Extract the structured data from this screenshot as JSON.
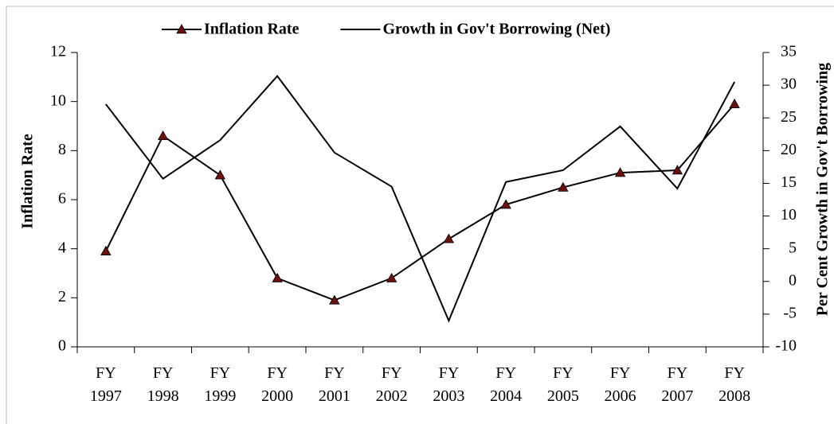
{
  "chart_data": {
    "type": "line",
    "categories": [
      "FY 1997",
      "FY 1998",
      "FY 1999",
      "FY 2000",
      "FY 2001",
      "FY 2002",
      "FY 2003",
      "FY 2004",
      "FY 2005",
      "FY 2006",
      "FY 2007",
      "FY 2008"
    ],
    "series": [
      {
        "name": "Inflation Rate",
        "color": "#000000",
        "marker": "triangle",
        "marker_color": "#6b1010",
        "values": [
          3.9,
          8.6,
          7.0,
          2.8,
          1.9,
          2.8,
          4.4,
          5.8,
          6.5,
          7.1,
          7.2,
          9.9
        ]
      },
      {
        "name": "Growth in Gov't Borrowing (Net)",
        "color": "#000000",
        "axis": "y2",
        "values": [
          27.1,
          15.7,
          21.6,
          31.4,
          19.7,
          14.5,
          -6.0,
          15.2,
          17.0,
          23.7,
          14.2,
          30.5
        ]
      }
    ],
    "y_label": "Inflation Rate",
    "y2_label": "Per Cent Growth in Gov't Borrowing",
    "ylim": [
      0,
      12
    ],
    "yticks": [
      0,
      2,
      4,
      6,
      8,
      10,
      12
    ],
    "y2lim": [
      -10,
      35
    ],
    "y2ticks": [
      -10,
      -5,
      0,
      5,
      10,
      15,
      20,
      25,
      30,
      35
    ],
    "grid": false,
    "legend": "top"
  }
}
